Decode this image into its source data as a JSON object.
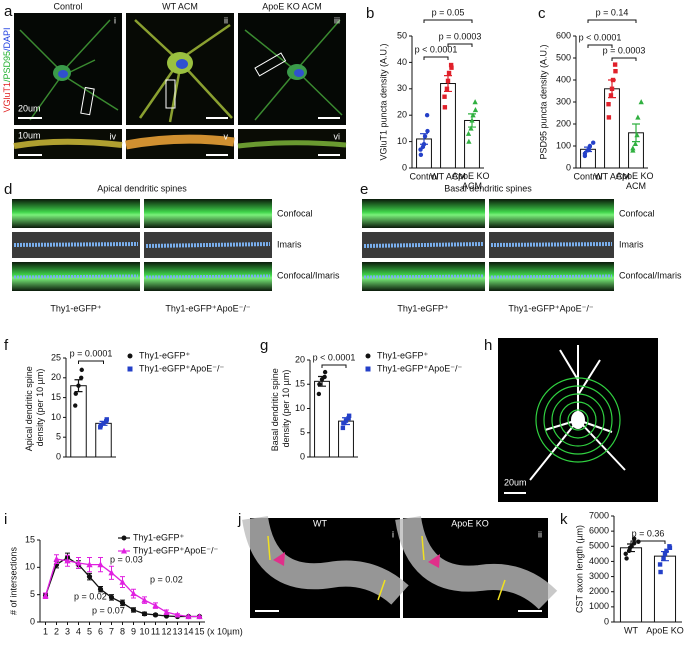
{
  "images": {
    "a": {
      "panel": "a",
      "columns": [
        "Control",
        "WT ACM",
        "ApoE KO ACM"
      ],
      "stain": [
        "VGluT1",
        "/PSD95",
        "/DAPI"
      ],
      "roman": [
        "i",
        "ii",
        "iii",
        "iv",
        "v",
        "vi"
      ],
      "scale_bars": [
        "20um",
        "10um"
      ]
    },
    "d": {
      "panel": "d",
      "title": "Apical dendritic spines",
      "rows": [
        "Confocal",
        "Imaris",
        "Confocal/Imaris"
      ],
      "columns": [
        "Thy1-eGFP⁺",
        "Thy1-eGFP⁺ApoE⁻/⁻"
      ]
    },
    "e": {
      "panel": "e",
      "title": "Basal dendritic spines",
      "rows": [
        "Confocal",
        "Imaris",
        "Confocal/Imaris"
      ],
      "columns": [
        "Thy1-eGFP⁺",
        "Thy1-eGFP⁺ApoE⁻/⁻"
      ]
    },
    "h": {
      "panel": "h",
      "scale_bar": "20um"
    },
    "j": {
      "panel": "j",
      "columns": [
        "WT",
        "ApoE KO"
      ],
      "roman": [
        "i",
        "ii"
      ]
    }
  },
  "chart_data": [
    {
      "type": "bar",
      "panel": "b",
      "ylabel": "VGluT1 puncta density (A.U.)",
      "categories": [
        "Control",
        "WT ACM",
        "ApoE KO ACM"
      ],
      "values": [
        11,
        32,
        18
      ],
      "errors": [
        2,
        3,
        2.5
      ],
      "points": [
        [
          5,
          7,
          8,
          9,
          12,
          14,
          20
        ],
        [
          23,
          27,
          30,
          33,
          36,
          38,
          39
        ],
        [
          10,
          13,
          15,
          18,
          20,
          22,
          25
        ]
      ],
      "colors": [
        "#2440c8",
        "#e0202a",
        "#30b040"
      ],
      "markers": [
        "circle",
        "square",
        "triangle"
      ],
      "ylim": [
        0,
        50
      ],
      "yticks": [
        0,
        10,
        20,
        30,
        40,
        50
      ],
      "annotations": [
        "p < 0.0001",
        "p = 0.0003",
        "p = 0.05"
      ]
    },
    {
      "type": "bar",
      "panel": "c",
      "ylabel": "PSD95 puncta density (A.U.)",
      "categories": [
        "Control",
        "WT ACM",
        "ApoE KO ACM"
      ],
      "values": [
        85,
        360,
        160
      ],
      "errors": [
        10,
        40,
        40
      ],
      "points": [
        [
          55,
          65,
          80,
          85,
          100,
          115
        ],
        [
          230,
          290,
          330,
          360,
          400,
          440,
          470
        ],
        [
          80,
          90,
          110,
          150,
          230,
          300
        ]
      ],
      "colors": [
        "#2440c8",
        "#e0202a",
        "#30b040"
      ],
      "markers": [
        "circle",
        "square",
        "triangle"
      ],
      "ylim": [
        0,
        600
      ],
      "yticks": [
        0,
        100,
        200,
        300,
        400,
        500,
        600
      ],
      "annotations": [
        "p = 0.14",
        "p < 0.0001",
        "p = 0.0003"
      ]
    },
    {
      "type": "bar",
      "panel": "f",
      "ylabel": "Apical dendritic spine density (per 10 µm)",
      "series": [
        {
          "name": "Thy1-eGFP⁺",
          "color": "#111111",
          "marker": "circle",
          "values": [
            18
          ],
          "errors": [
            1.5
          ],
          "points": [
            [
              13,
              16,
              18,
              20,
              22
            ]
          ]
        },
        {
          "name": "Thy1-eGFP⁺ApoE⁻/⁻",
          "color": "#2440c8",
          "marker": "square",
          "values": [
            8.5
          ],
          "errors": [
            0.5
          ],
          "points": [
            [
              7.5,
              8,
              8.5,
              9,
              9.5
            ]
          ]
        }
      ],
      "ylim": [
        0,
        25
      ],
      "yticks": [
        0,
        5,
        10,
        15,
        20,
        25
      ],
      "annotations": [
        "p = 0.0001"
      ]
    },
    {
      "type": "bar",
      "panel": "g",
      "ylabel": "Basal dendritic spine density (per 10 µm)",
      "series": [
        {
          "name": "Thy1-eGFP⁺",
          "color": "#111111",
          "marker": "circle",
          "values": [
            15.6
          ],
          "errors": [
            1
          ],
          "points": [
            [
              13,
              15,
              16,
              16.5,
              17.5
            ]
          ]
        },
        {
          "name": "Thy1-eGFP⁺ApoE⁻/⁻",
          "color": "#2440c8",
          "marker": "square",
          "values": [
            7.4
          ],
          "errors": [
            0.7
          ],
          "points": [
            [
              6,
              7,
              7.5,
              8,
              8.5
            ]
          ]
        }
      ],
      "ylim": [
        0,
        20
      ],
      "yticks": [
        0,
        5,
        10,
        15,
        20
      ],
      "annotations": [
        "p < 0.0001"
      ]
    },
    {
      "type": "line",
      "panel": "i",
      "ylabel": "# of intersections",
      "xlabel": "(x 10µm)",
      "x": [
        1,
        2,
        3,
        4,
        5,
        6,
        7,
        8,
        9,
        10,
        11,
        12,
        13,
        14,
        15
      ],
      "xlim": [
        0.5,
        15.5
      ],
      "xticks": [
        1,
        2,
        3,
        4,
        5,
        6,
        7,
        8,
        9,
        10,
        11,
        12,
        13,
        14,
        15
      ],
      "ylim": [
        0,
        15
      ],
      "yticks": [
        0,
        5,
        10,
        15
      ],
      "series": [
        {
          "name": "Thy1-eGFP⁺",
          "color": "#111111",
          "marker": "circle",
          "values": [
            4.8,
            10.5,
            11.8,
            10.5,
            8.3,
            6,
            4.5,
            3.5,
            2.2,
            1.5,
            1.3,
            1.1,
            1,
            1,
            1
          ],
          "errors": [
            0.4,
            0.6,
            0.8,
            0.7,
            0.6,
            0.5,
            0.5,
            0.5,
            0.4,
            0.3,
            0.2,
            0.1,
            0,
            0,
            0
          ]
        },
        {
          "name": "Thy1-eGFP⁺ApoE⁻/⁻",
          "color": "#e020e0",
          "marker": "triangle",
          "values": [
            4.8,
            11.5,
            11.2,
            10.8,
            10.5,
            10.5,
            9,
            7.3,
            5.2,
            4,
            3,
            1.8,
            1.3,
            1,
            1
          ],
          "errors": [
            0.5,
            0.8,
            1,
            1,
            1.3,
            1.3,
            1.2,
            1,
            0.8,
            0.6,
            0.5,
            0.4,
            0.2,
            0,
            0
          ]
        }
      ],
      "annotations": [
        "p = 0.03",
        "p = 0.02",
        "p = 0.02",
        "p = 0.07"
      ]
    },
    {
      "type": "bar",
      "panel": "k",
      "ylabel": "CST axon length (µm)",
      "categories": [
        "WT",
        "ApoE KO"
      ],
      "values": [
        4900,
        4350
      ],
      "errors": [
        250,
        300
      ],
      "points": [
        [
          4200,
          4500,
          4700,
          4900,
          5000,
          5200,
          5500,
          5300
        ],
        [
          3300,
          3800,
          4200,
          4500,
          4700,
          4900,
          5000
        ]
      ],
      "colors": [
        "#111111",
        "#2440c8"
      ],
      "markers": [
        "circle",
        "square"
      ],
      "ylim": [
        0,
        7000
      ],
      "yticks": [
        0,
        1000,
        2000,
        3000,
        4000,
        5000,
        6000,
        7000
      ],
      "annotations": [
        "p = 0.36"
      ]
    }
  ]
}
